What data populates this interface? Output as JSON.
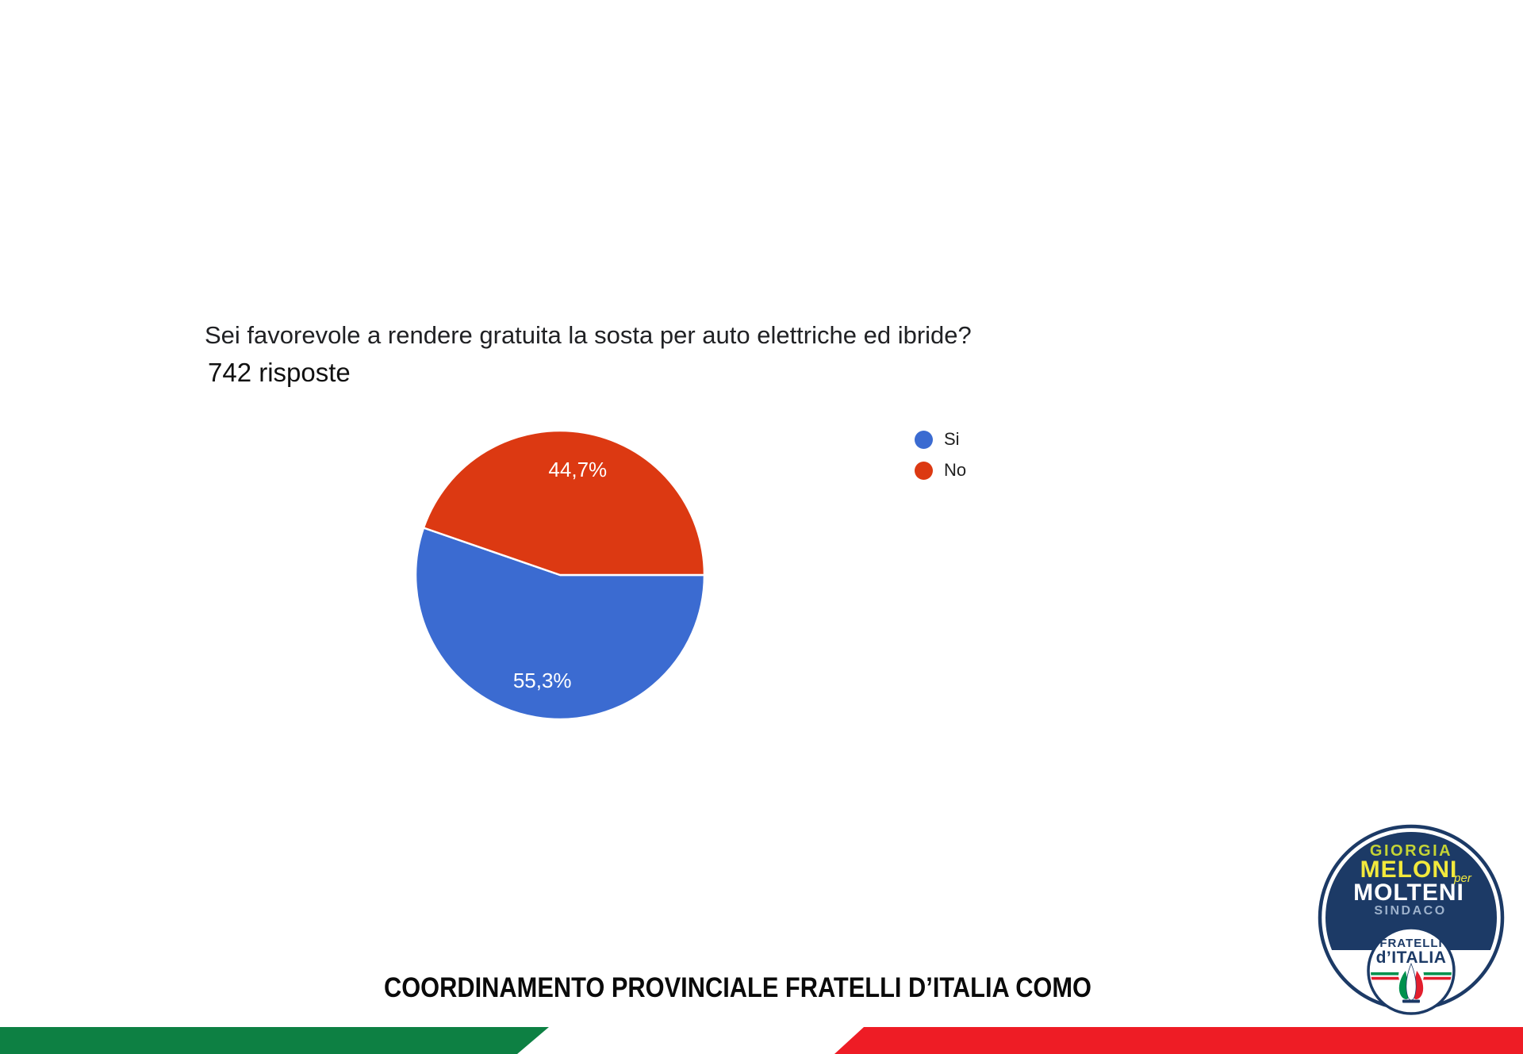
{
  "question": {
    "title": "Sei favorevole a rendere gratuita la sosta per auto elettriche ed ibride?",
    "responses": "742 risposte"
  },
  "chart_data": {
    "type": "pie",
    "title": "Sei favorevole a rendere gratuita la sosta per auto elettriche ed ibride?",
    "total_responses": 742,
    "start_angle_deg": 0,
    "direction": "clockwise",
    "legend_position": "right",
    "label_color": "#ffffff",
    "slice_border_color": "#ffffff",
    "series": [
      {
        "label": "Si",
        "value": 55.3,
        "display": "55,3%",
        "color": "#3b6bd1"
      },
      {
        "label": "No",
        "value": 44.7,
        "display": "44,7%",
        "color": "#dc3912"
      }
    ]
  },
  "legend": {
    "items": [
      {
        "label": "Si",
        "color": "#3b6bd1"
      },
      {
        "label": "No",
        "color": "#dc3912"
      }
    ]
  },
  "footer": {
    "title": "COORDINAMENTO PROVINCIALE FRATELLI D’ITALIA COMO"
  },
  "flag_band": {
    "green": "#0d8043",
    "white": "#ffffff",
    "red": "#ee1c25"
  },
  "badge": {
    "top_name": "GIORGIA",
    "main_name": "MELONI",
    "connector": "per",
    "candidate": "MOLTENI",
    "role": "SINDACO",
    "party_line1": "FRATELLI",
    "party_line2": "d’ITALIA",
    "colors": {
      "navy": "#1c3a66",
      "yellow": "#f2e93c",
      "yellow_green": "#c5d435",
      "muted_blue": "#9db1cb",
      "flame_green": "#00914d",
      "flame_red": "#e31e2d",
      "white": "#ffffff"
    }
  }
}
